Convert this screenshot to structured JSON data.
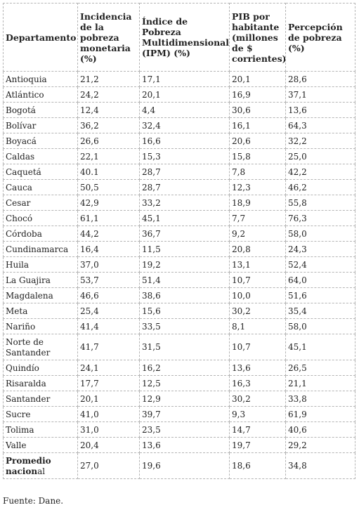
{
  "table": {
    "headers": [
      "Departamento",
      "Incidencia de la pobreza monetaria (%)",
      "Índice de Pobreza Multidimensional (IPM) (%)",
      "PIB por habitante (millones de $ corrientes)",
      "Percepción de pobreza (%)"
    ],
    "rows": [
      [
        "Antioquia",
        "21,2",
        "17,1",
        "20,1",
        "28,6"
      ],
      [
        "Atlántico",
        "24,2",
        "20,1",
        "16,9",
        "37,1"
      ],
      [
        "Bogotá",
        "12,4",
        "4,4",
        "30,6",
        "13,6"
      ],
      [
        "Bolívar",
        "36,2",
        "32,4",
        "16,1",
        "64,3"
      ],
      [
        "Boyacá",
        "26,6",
        "16,6",
        "20,6",
        "32,2"
      ],
      [
        "Caldas",
        "22,1",
        "15,3",
        "15,8",
        "25,0"
      ],
      [
        "Caquetá",
        "40.1",
        "28,7",
        "7,8",
        "42,2"
      ],
      [
        "Cauca",
        "50,5",
        "28,7",
        "12,3",
        "46,2"
      ],
      [
        "Cesar",
        "42,9",
        "33,2",
        "18,9",
        "55,8"
      ],
      [
        "Chocó",
        "61,1",
        "45,1",
        "7,7",
        "76,3"
      ],
      [
        "Córdoba",
        "44,2",
        "36,7",
        "9,2",
        "58,0"
      ],
      [
        "Cundinamarca",
        "16,4",
        "11,5",
        "20,8",
        "24,3"
      ],
      [
        "Huila",
        "37,0",
        "19,2",
        "13,1",
        "52,4"
      ],
      [
        "La Guajira",
        "53,7",
        "51,4",
        "10,7",
        "64,0"
      ],
      [
        "Magdalena",
        "46,6",
        "38,6",
        "10,0",
        "51,6"
      ],
      [
        "Meta",
        "25,4",
        "15,6",
        "30,2",
        "35,4"
      ],
      [
        "Nariño",
        "41,4",
        "33,5",
        "8,1",
        "58,0"
      ],
      [
        "Norte de Santander",
        "41,7",
        "31,5",
        "10,7",
        "45,1"
      ],
      [
        "Quindío",
        "24,1",
        "16,2",
        "13,6",
        "26,5"
      ],
      [
        "Risaralda",
        "17,7",
        "12,5",
        "16,3",
        "21,1"
      ],
      [
        "Santander",
        "20,1",
        "12,9",
        "30,2",
        "33,8"
      ],
      [
        "Sucre",
        "41,0",
        "39,7",
        "9,3",
        "61,9"
      ],
      [
        "Tolima",
        "31,0",
        "23,5",
        "14,7",
        "40,6"
      ],
      [
        "Valle",
        "20,4",
        "13,6",
        "19,7",
        "29,2"
      ]
    ],
    "total": {
      "label_bold": "Promedio nacion",
      "label_rest": "al",
      "values": [
        "27,0",
        "19,6",
        "18,6",
        "34,8"
      ]
    }
  },
  "source": "Fuente: Dane."
}
